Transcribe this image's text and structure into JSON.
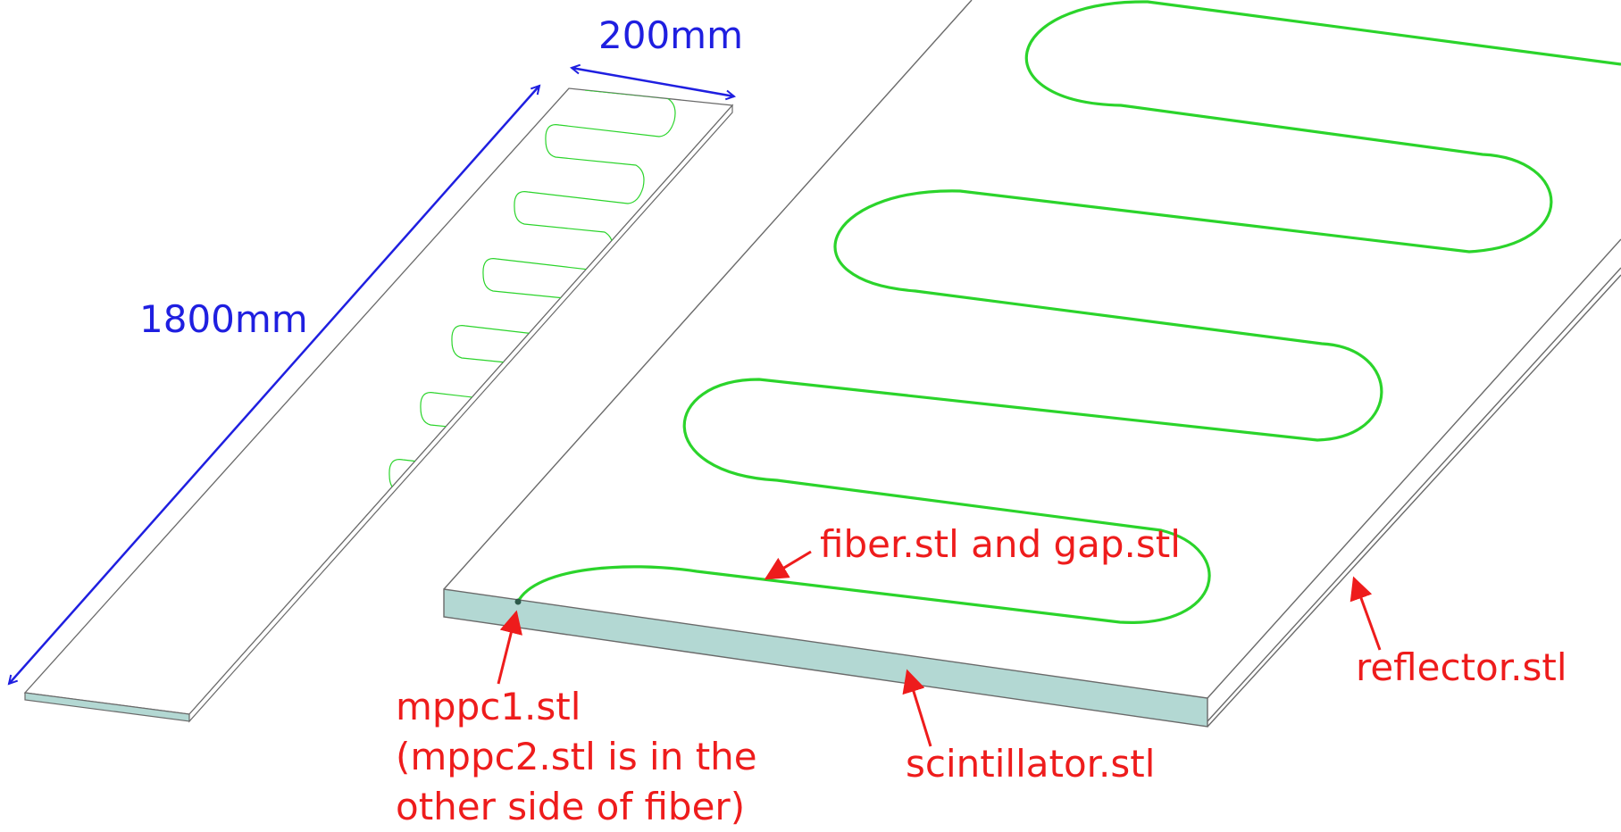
{
  "colors": {
    "fiber": "#2bd42b",
    "dimension": "#1f1fe0",
    "callout": "#ee1c1c",
    "edge": "#6a6a6a",
    "scintillator_face": "#b3d8d3"
  },
  "dimensions": {
    "width_label": "200mm",
    "length_label": "1800mm"
  },
  "callouts": {
    "fiber": "fiber.stl and gap.stl",
    "reflector": "reflector.stl",
    "scintillator": "scintillator.stl",
    "mppc_line1": "mppc1.stl",
    "mppc_line2": "(mppc2.stl is in the",
    "mppc_line3": "other side of fiber)"
  }
}
